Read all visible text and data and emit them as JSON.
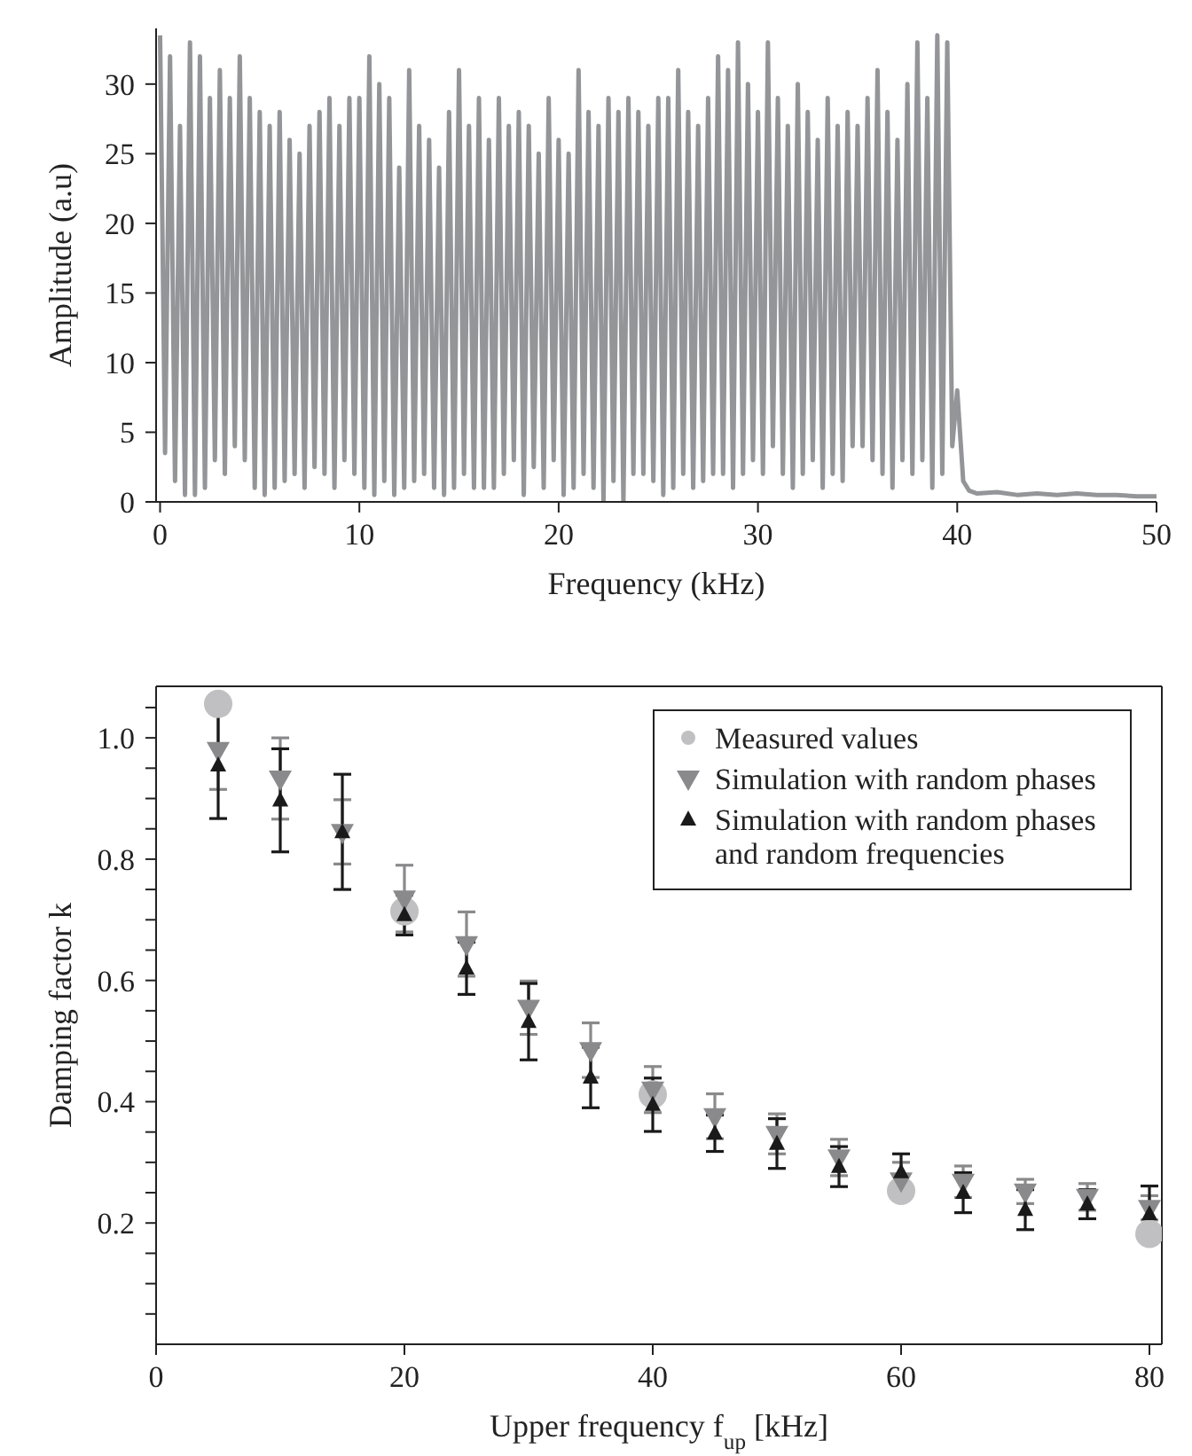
{
  "chart_data": [
    {
      "type": "line",
      "xlabel": "Frequency (kHz)",
      "ylabel": "Amplitude (a.u)",
      "xlim": [
        -0.2,
        50
      ],
      "ylim": [
        0,
        34
      ],
      "xticks": [
        0,
        10,
        20,
        30,
        40,
        50
      ],
      "yticks": [
        0,
        5,
        10,
        15,
        20,
        25,
        30
      ],
      "grid": false,
      "legend": false,
      "marker": "none",
      "series": [
        {
          "color": "#939598",
          "x": [
            0,
            0.25,
            0.5,
            0.75,
            1,
            1.25,
            1.5,
            1.75,
            2,
            2.25,
            2.5,
            2.75,
            3,
            3.25,
            3.5,
            3.75,
            4,
            4.25,
            4.5,
            4.75,
            5,
            5.25,
            5.5,
            5.75,
            6,
            6.25,
            6.5,
            6.75,
            7,
            7.25,
            7.5,
            7.75,
            8,
            8.25,
            8.5,
            8.75,
            9,
            9.25,
            9.5,
            9.75,
            10,
            10.25,
            10.5,
            10.75,
            11,
            11.25,
            11.5,
            11.75,
            12,
            12.25,
            12.5,
            12.75,
            13,
            13.25,
            13.5,
            13.75,
            14,
            14.25,
            14.5,
            14.75,
            15,
            15.25,
            15.5,
            15.75,
            16,
            16.25,
            16.5,
            16.75,
            17,
            17.25,
            17.5,
            17.75,
            18,
            18.25,
            18.5,
            18.75,
            19,
            19.25,
            19.5,
            19.75,
            20,
            20.25,
            20.5,
            20.75,
            21,
            21.25,
            21.5,
            21.75,
            22,
            22.25,
            22.5,
            22.75,
            23,
            23.25,
            23.5,
            23.75,
            24,
            24.25,
            24.5,
            24.75,
            25,
            25.25,
            25.5,
            25.75,
            26,
            26.25,
            26.5,
            26.75,
            27,
            27.25,
            27.5,
            27.75,
            28,
            28.25,
            28.5,
            28.75,
            29,
            29.25,
            29.5,
            29.75,
            30,
            30.25,
            30.5,
            30.75,
            31,
            31.25,
            31.5,
            31.75,
            32,
            32.25,
            32.5,
            32.75,
            33,
            33.25,
            33.5,
            33.75,
            34,
            34.25,
            34.5,
            34.75,
            35,
            35.25,
            35.5,
            35.75,
            36,
            36.25,
            36.5,
            36.75,
            37,
            37.25,
            37.5,
            37.75,
            38,
            38.25,
            38.5,
            38.75,
            39,
            39.25,
            39.5,
            39.75,
            40,
            40.3,
            40.6,
            41,
            42,
            43,
            44,
            45,
            46,
            47,
            48,
            49,
            50
          ],
          "values": [
            33.5,
            3.5,
            32,
            1.5,
            27,
            0.5,
            33,
            0.5,
            32,
            1,
            29,
            3,
            31,
            2,
            29,
            4,
            32,
            3,
            29,
            1,
            28,
            0.5,
            27,
            1,
            28,
            1.5,
            26,
            2,
            25,
            1,
            27,
            2.5,
            28,
            2,
            29,
            1,
            27,
            3,
            29,
            2,
            29,
            1,
            32,
            0.5,
            30,
            1.5,
            29,
            0.5,
            24,
            1,
            31,
            1.5,
            27,
            2,
            26,
            1,
            24,
            0.5,
            28,
            1,
            31,
            2,
            27,
            1,
            29,
            1,
            26,
            1,
            29,
            2,
            27,
            3,
            28,
            0.5,
            27,
            2.5,
            25,
            1,
            29,
            3,
            26,
            0.5,
            25,
            1,
            31,
            2,
            28,
            1,
            27,
            0,
            29,
            1.5,
            28,
            0,
            29,
            2,
            28,
            2,
            27,
            1.5,
            29,
            0.5,
            29,
            1,
            31,
            2,
            28,
            1,
            27,
            1.5,
            29,
            2,
            32,
            2,
            31,
            1,
            33,
            2,
            30,
            3,
            28,
            2,
            33,
            4,
            29,
            2,
            27,
            1,
            30,
            2,
            28,
            3,
            26,
            1,
            29,
            2,
            27,
            1.5,
            28,
            4,
            27,
            4,
            29,
            3,
            31,
            2,
            28,
            1,
            26,
            3,
            30,
            2,
            33,
            3,
            29,
            1,
            33.5,
            2,
            33,
            4,
            8,
            1.5,
            0.8,
            0.6,
            0.7,
            0.5,
            0.6,
            0.5,
            0.6,
            0.5,
            0.5,
            0.4,
            0.4
          ]
        }
      ]
    },
    {
      "type": "scatter",
      "xlabel": "Upper frequency f$_{up}$ [kHz]",
      "ylabel": "Damping factor k",
      "xlim": [
        0,
        81
      ],
      "ylim": [
        0,
        1.085
      ],
      "xticks": [
        0,
        20,
        40,
        60,
        80
      ],
      "yticks": [
        {
          "value": 0.05,
          "label": null
        },
        {
          "value": 0.1,
          "label": null
        },
        {
          "value": 0.15,
          "label": null
        },
        0.2,
        {
          "value": 0.25,
          "label": null
        },
        {
          "value": 0.3,
          "label": null
        },
        {
          "value": 0.35,
          "label": null
        },
        0.4,
        {
          "value": 0.45,
          "label": null
        },
        {
          "value": 0.5,
          "label": null
        },
        {
          "value": 0.55,
          "label": null
        },
        0.6,
        {
          "value": 0.65,
          "label": null
        },
        {
          "value": 0.7,
          "label": null
        },
        {
          "value": 0.75,
          "label": null
        },
        0.8,
        {
          "value": 0.85,
          "label": null
        },
        {
          "value": 0.9,
          "label": null
        },
        {
          "value": 0.95,
          "label": null
        },
        {
          "value": 1.0,
          "label": "1.0"
        },
        {
          "value": 1.05,
          "label": null
        }
      ],
      "grid": false,
      "legend": "top right",
      "series": [
        {
          "name": "Measured values",
          "color": "#c0c0c2",
          "marker": "circle",
          "x": [
            5,
            20,
            40,
            60,
            80
          ],
          "values": [
            1.056,
            0.714,
            0.412,
            0.253,
            0.182
          ]
        },
        {
          "name": "Simulation with random phases",
          "color": "#8a8a8c",
          "marker": "triangle-down",
          "x": [
            5,
            10,
            15,
            20,
            25,
            30,
            35,
            40,
            45,
            50,
            55,
            60,
            65,
            70,
            75,
            80
          ],
          "values": [
            0.98,
            0.933,
            0.845,
            0.735,
            0.66,
            0.555,
            0.485,
            0.42,
            0.376,
            0.347,
            0.308,
            0.27,
            0.268,
            0.252,
            0.243,
            0.225
          ],
          "errors": [
            0.065,
            0.067,
            0.053,
            0.055,
            0.053,
            0.044,
            0.045,
            0.038,
            0.037,
            0.033,
            0.03,
            0.03,
            0.026,
            0.02,
            0.022,
            0.02
          ]
        },
        {
          "name": "Simulation with random phases and random frequencies",
          "color": "#1a1a1a",
          "marker": "triangle",
          "x": [
            5,
            10,
            15,
            20,
            25,
            30,
            35,
            40,
            45,
            50,
            55,
            60,
            65,
            70,
            75,
            80
          ],
          "values": [
            0.955,
            0.897,
            0.845,
            0.708,
            0.62,
            0.532,
            0.44,
            0.395,
            0.348,
            0.331,
            0.293,
            0.284,
            0.25,
            0.222,
            0.231,
            0.215
          ],
          "errors": [
            0.088,
            0.085,
            0.095,
            0.033,
            0.043,
            0.063,
            0.05,
            0.044,
            0.03,
            0.041,
            0.033,
            0.03,
            0.033,
            0.033,
            0.024,
            0.046
          ]
        }
      ]
    }
  ]
}
